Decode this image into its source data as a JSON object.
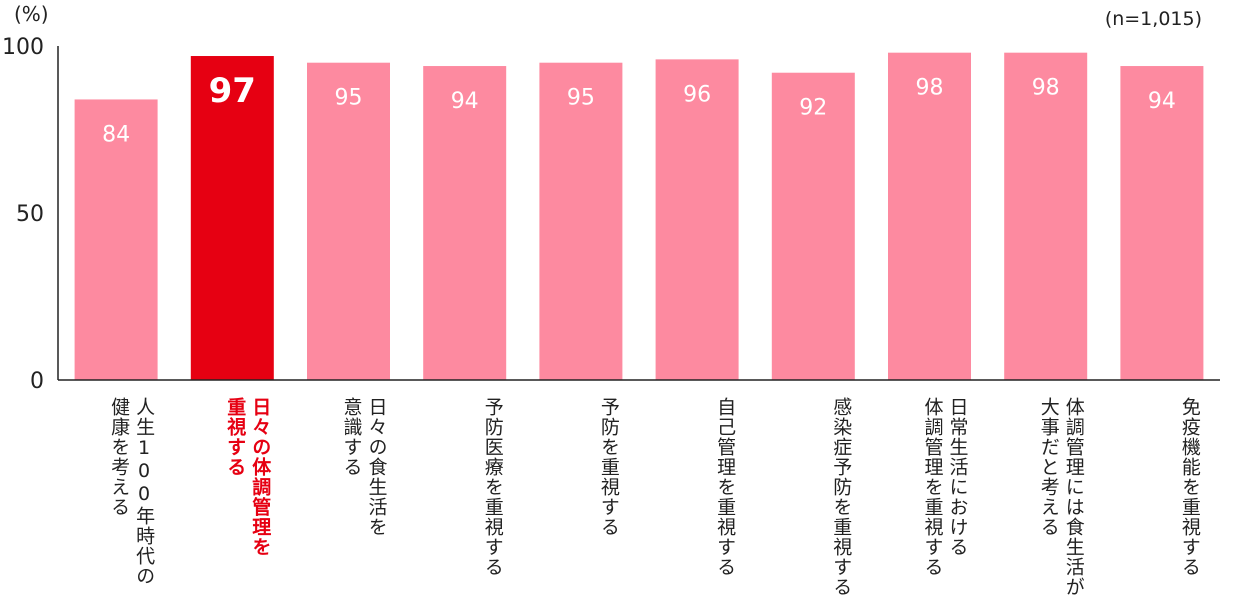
{
  "chart_data": {
    "type": "bar",
    "unit_label": "(%)",
    "sample_note": "(n=1,015)",
    "ylim": [
      0,
      100
    ],
    "yticks": [
      0,
      50,
      100
    ],
    "categories": [
      "人生100年時代の\n健康を考える",
      "日々の体調管理を\n重視する",
      "日々の食生活を\n意識する",
      "予防医療を重視する",
      "予防を重視する",
      "自己管理を重視する",
      "感染症予防を重視する",
      "日常生活における\n体調管理を重視する",
      "体調管理には食生活が\n大事だと考える",
      "免疫機能を重視する"
    ],
    "values": [
      84,
      97,
      95,
      94,
      95,
      96,
      92,
      98,
      98,
      94
    ],
    "highlight_index": 1,
    "colors": {
      "bar": "#fd8aa0",
      "highlight": "#e60012",
      "axis": "#222222"
    },
    "legend": "none",
    "grid": false
  }
}
